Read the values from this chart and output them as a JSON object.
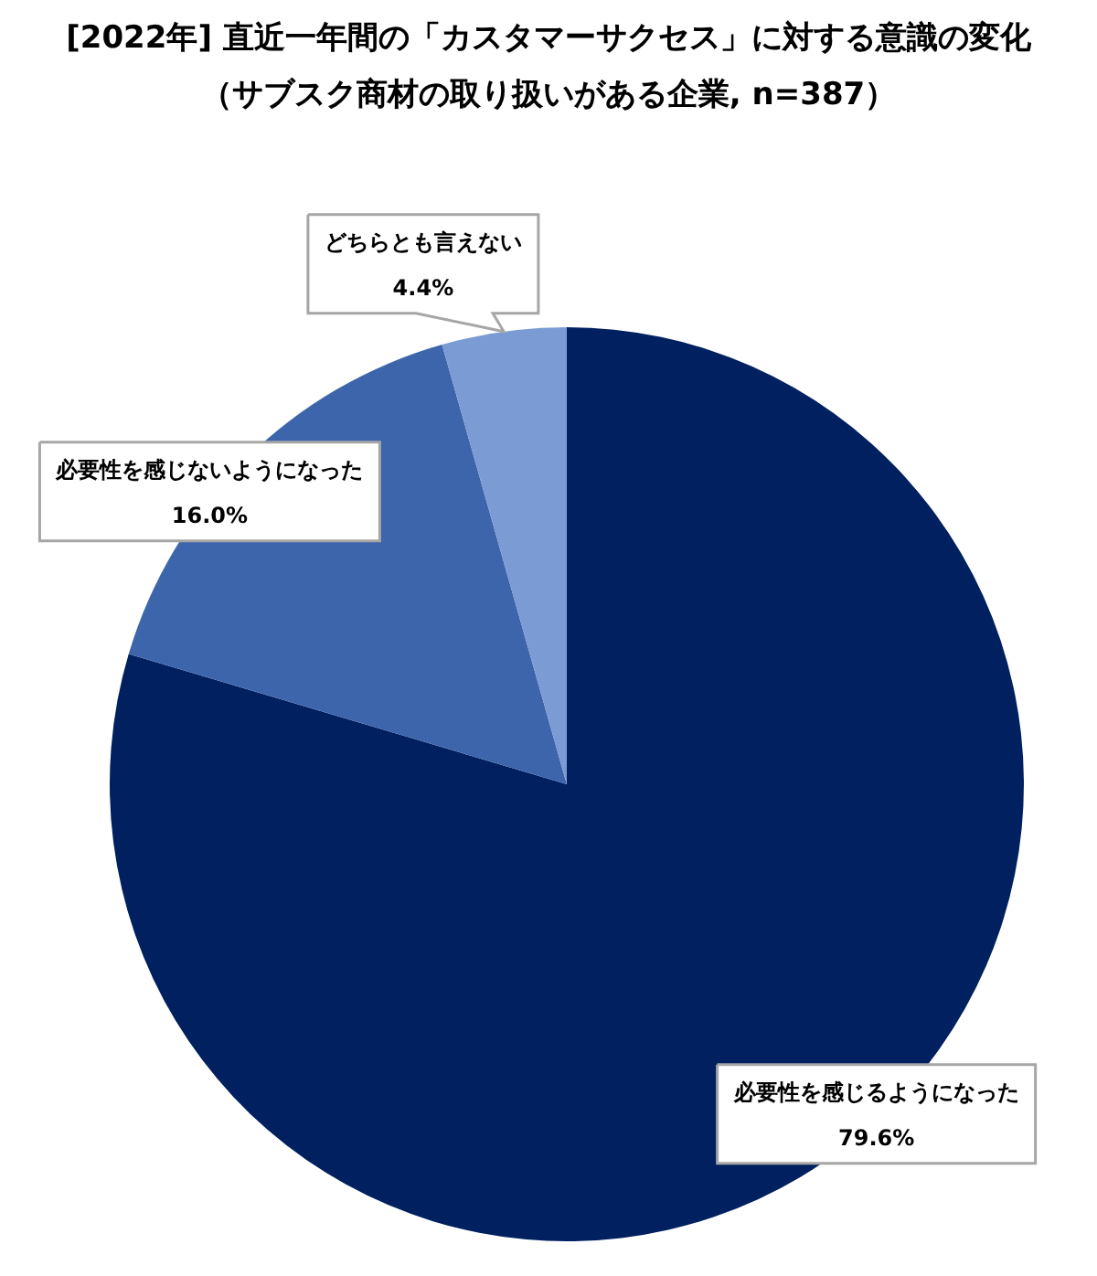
{
  "chart_data": {
    "type": "pie",
    "title": "[2022年] 直近一年間の「カスタマーサクセス」に対する意識の変化",
    "subtitle": "（サブスク商材の取り扱いがある企業, n=387）",
    "categories": [
      "必要性を感じるようになった",
      "必要性を感じないようになった",
      "どちらとも言えない"
    ],
    "values": [
      79.6,
      16.0,
      4.4
    ],
    "colors": [
      "#002060",
      "#3d65ab",
      "#7b9bd5"
    ],
    "value_labels": [
      "79.6%",
      "16.0%",
      "4.4%"
    ],
    "legend": false
  }
}
